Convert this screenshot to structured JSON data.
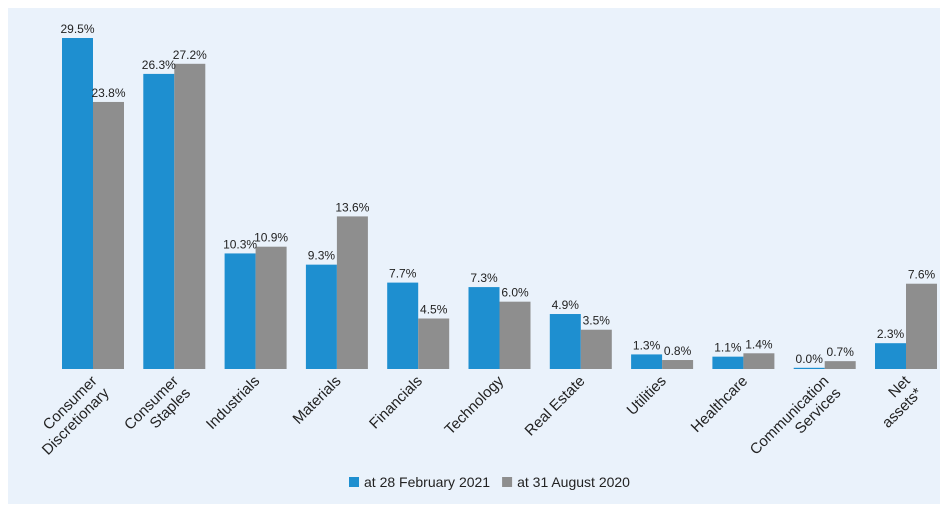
{
  "chart_data": {
    "type": "bar",
    "categories": [
      [
        "Consumer",
        "Discretionary"
      ],
      [
        "Consumer",
        "Staples"
      ],
      [
        "Industrials"
      ],
      [
        "Materials"
      ],
      [
        "Financials"
      ],
      [
        "Technology"
      ],
      [
        "Real Estate"
      ],
      [
        "Utilities"
      ],
      [
        "Healthcare"
      ],
      [
        "Communication",
        "Services"
      ],
      [
        "Net",
        "assets*"
      ]
    ],
    "series": [
      {
        "name": "at 28 February 2021",
        "color": "#1e8fd0",
        "values": [
          29.5,
          26.3,
          10.3,
          9.3,
          7.7,
          7.3,
          4.9,
          1.3,
          1.1,
          0.0,
          2.3
        ],
        "labels": [
          "29.5%",
          "26.3%",
          "10.3%",
          "9.3%",
          "7.7%",
          "7.3%",
          "4.9%",
          "1.3%",
          "1.1%",
          "0.0%",
          "2.3%"
        ]
      },
      {
        "name": "at 31 August 2020",
        "color": "#8e8e8e",
        "values": [
          23.8,
          27.2,
          10.9,
          13.6,
          4.5,
          6.0,
          3.5,
          0.8,
          1.4,
          0.7,
          7.6
        ],
        "labels": [
          "23.8%",
          "27.2%",
          "10.9%",
          "13.6%",
          "4.5%",
          "6.0%",
          "3.5%",
          "0.8%",
          "1.4%",
          "0.7%",
          "7.6%"
        ]
      }
    ],
    "ylim": [
      0,
      30
    ],
    "grid": false,
    "legend": "bottom-center",
    "title": "",
    "xlabel": "",
    "ylabel": ""
  }
}
